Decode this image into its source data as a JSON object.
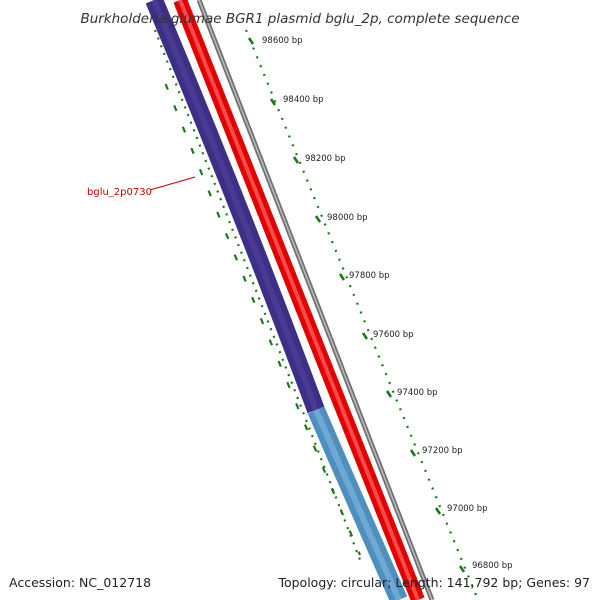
{
  "title": "Burkholderia glumae BGR1 plasmid bglu_2p, complete sequence",
  "footer": {
    "accession": "Accession: NC_012718",
    "summary": "Topology: circular; Length: 141,792 bp; Genes: 97"
  },
  "gene_label": {
    "text": "bglu_2p0730",
    "color": "#cc0000"
  },
  "ticks": [
    "98600 bp",
    "98400 bp",
    "98200 bp",
    "98000 bp",
    "97800 bp",
    "97600 bp",
    "97400 bp",
    "97200 bp",
    "97000 bp",
    "96800 bp"
  ],
  "colors": {
    "gene_forward": "#e00000",
    "gene_reverse_dark": "#3d2f85",
    "gene_reverse_light": "#4f8fc0",
    "backbone": "#707070",
    "gc_dots": "#1a7a1a"
  }
}
